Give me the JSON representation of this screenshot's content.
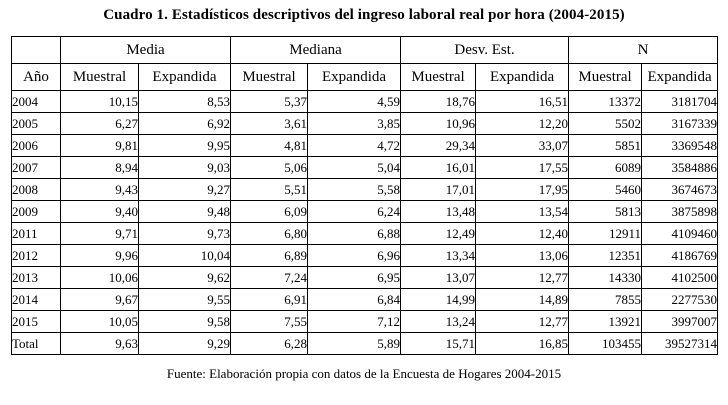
{
  "title": "Cuadro 1. Estadísticos descriptivos del ingreso laboral real por hora (2004-2015)",
  "table": {
    "group_headers": {
      "media": "Media",
      "mediana": "Mediana",
      "desv_est": "Desv. Est.",
      "n": "N"
    },
    "col_headers": {
      "year": "Año",
      "muestral": "Muestral",
      "expandida": "Expandida"
    },
    "rows": [
      {
        "year": "2004",
        "values": [
          "10,15",
          "8,53",
          "5,37",
          "4,59",
          "18,76",
          "16,51",
          "13372",
          "3181704"
        ]
      },
      {
        "year": "2005",
        "values": [
          "6,27",
          "6,92",
          "3,61",
          "3,85",
          "10,96",
          "12,20",
          "5502",
          "3167339"
        ]
      },
      {
        "year": "2006",
        "values": [
          "9,81",
          "9,95",
          "4,81",
          "4,72",
          "29,34",
          "33,07",
          "5851",
          "3369548"
        ]
      },
      {
        "year": "2007",
        "values": [
          "8,94",
          "9,03",
          "5,06",
          "5,04",
          "16,01",
          "17,55",
          "6089",
          "3584886"
        ]
      },
      {
        "year": "2008",
        "values": [
          "9,43",
          "9,27",
          "5,51",
          "5,58",
          "17,01",
          "17,95",
          "5460",
          "3674673"
        ]
      },
      {
        "year": "2009",
        "values": [
          "9,40",
          "9,48",
          "6,09",
          "6,24",
          "13,48",
          "13,54",
          "5813",
          "3875898"
        ]
      },
      {
        "year": "2011",
        "values": [
          "9,71",
          "9,73",
          "6,80",
          "6,88",
          "12,49",
          "12,40",
          "12911",
          "4109460"
        ]
      },
      {
        "year": "2012",
        "values": [
          "9,96",
          "10,04",
          "6,89",
          "6,96",
          "13,34",
          "13,06",
          "12351",
          "4186769"
        ]
      },
      {
        "year": "2013",
        "values": [
          "10,06",
          "9,62",
          "7,24",
          "6,95",
          "13,07",
          "12,77",
          "14330",
          "4102500"
        ]
      },
      {
        "year": "2014",
        "values": [
          "9,67",
          "9,55",
          "6,91",
          "6,84",
          "14,99",
          "14,89",
          "7855",
          "2277530"
        ]
      },
      {
        "year": "2015",
        "values": [
          "10,05",
          "9,58",
          "7,55",
          "7,12",
          "13,24",
          "12,77",
          "13921",
          "3997007"
        ]
      },
      {
        "year": "Total",
        "values": [
          "9,63",
          "9,29",
          "6,28",
          "5,89",
          "15,71",
          "16,85",
          "103455",
          "39527314"
        ]
      }
    ]
  },
  "source": "Fuente: Elaboración propia con datos de la Encuesta de Hogares 2004-2015"
}
